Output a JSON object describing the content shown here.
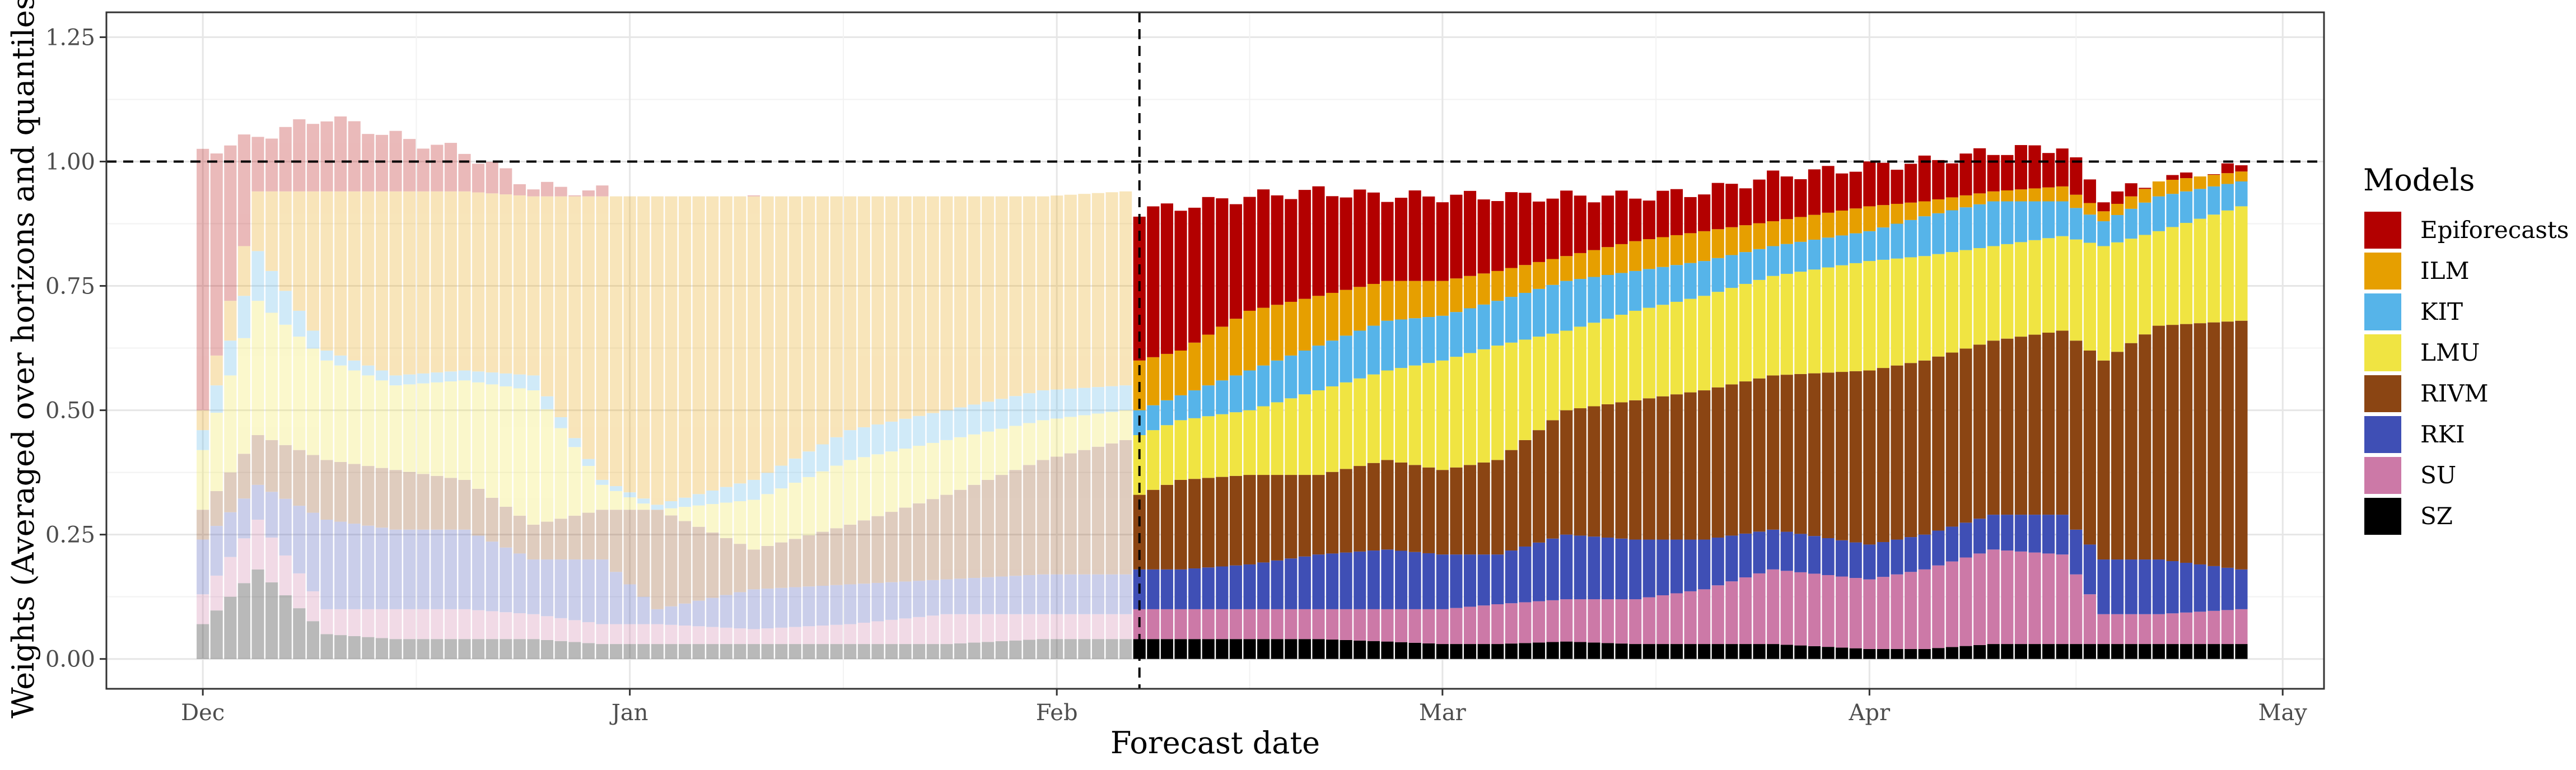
{
  "chart_data": {
    "type": "bar",
    "stacked": true,
    "xlabel": "Forecast date",
    "ylabel": "Weights (Averaged over horizons and quantiles)",
    "ylim": [
      -0.06,
      1.3
    ],
    "y_ticks": [
      "0.00",
      "0.25",
      "0.50",
      "0.75",
      "1.00",
      "1.25"
    ],
    "y_tick_values": [
      0,
      0.25,
      0.5,
      0.75,
      1.0,
      1.25
    ],
    "x_range": [
      "2021-11-24",
      "2022-05-04"
    ],
    "x_ticks": [
      {
        "label": "Dec",
        "date": "2021-12-01"
      },
      {
        "label": "Jan",
        "date": "2022-01-01"
      },
      {
        "label": "Feb",
        "date": "2022-02-01"
      },
      {
        "label": "Mar",
        "date": "2022-03-01"
      },
      {
        "label": "Apr",
        "date": "2022-04-01"
      },
      {
        "label": "May",
        "date": "2022-05-01"
      }
    ],
    "reference_line_y": 1.0,
    "vertical_line_date": "2022-02-07",
    "faded_before_date": "2022-02-07",
    "grid": true,
    "legend_position": "right",
    "legend_title": "Models",
    "series_order_bottom_to_top": [
      "SZ",
      "SU",
      "RKI",
      "RIVM",
      "LMU",
      "KIT",
      "ILM",
      "Epiforecasts"
    ],
    "models": [
      {
        "name": "Epiforecasts",
        "color": "#B30000"
      },
      {
        "name": "ILM",
        "color": "#E69F00"
      },
      {
        "name": "KIT",
        "color": "#56B4E9"
      },
      {
        "name": "LMU",
        "color": "#F0E442"
      },
      {
        "name": "RIVM",
        "color": "#8B4513"
      },
      {
        "name": "RKI",
        "color": "#3F4FB5"
      },
      {
        "name": "SU",
        "color": "#CC79A7"
      },
      {
        "name": "SZ",
        "color": "#000000"
      }
    ],
    "key_dates": [
      "2021-12-01",
      "2021-12-05",
      "2021-12-10",
      "2021-12-15",
      "2021-12-20",
      "2021-12-25",
      "2021-12-30",
      "2022-01-03",
      "2022-01-10",
      "2022-01-17",
      "2022-01-24",
      "2022-01-31",
      "2022-02-06",
      "2022-02-07",
      "2022-02-10",
      "2022-02-15",
      "2022-02-20",
      "2022-02-25",
      "2022-03-01",
      "2022-03-05",
      "2022-03-10",
      "2022-03-15",
      "2022-03-20",
      "2022-03-25",
      "2022-04-01",
      "2022-04-05",
      "2022-04-10",
      "2022-04-15",
      "2022-04-18",
      "2022-04-22",
      "2022-04-28"
    ],
    "key_cumulative": {
      "SZ": [
        0.07,
        0.18,
        0.05,
        0.04,
        0.04,
        0.04,
        0.03,
        0.03,
        0.03,
        0.03,
        0.03,
        0.04,
        0.04,
        0.04,
        0.04,
        0.04,
        0.04,
        0.035,
        0.03,
        0.03,
        0.035,
        0.03,
        0.03,
        0.03,
        0.02,
        0.02,
        0.03,
        0.03,
        0.03,
        0.03,
        0.03
      ],
      "SU": [
        0.13,
        0.28,
        0.1,
        0.1,
        0.1,
        0.09,
        0.07,
        0.07,
        0.06,
        0.07,
        0.09,
        0.09,
        0.09,
        0.1,
        0.1,
        0.1,
        0.1,
        0.1,
        0.1,
        0.11,
        0.12,
        0.12,
        0.14,
        0.18,
        0.16,
        0.18,
        0.22,
        0.21,
        0.09,
        0.09,
        0.1
      ],
      "RKI": [
        0.24,
        0.35,
        0.28,
        0.26,
        0.26,
        0.2,
        0.2,
        0.1,
        0.14,
        0.15,
        0.16,
        0.17,
        0.17,
        0.18,
        0.18,
        0.19,
        0.21,
        0.22,
        0.21,
        0.21,
        0.25,
        0.24,
        0.24,
        0.26,
        0.23,
        0.25,
        0.29,
        0.29,
        0.2,
        0.2,
        0.18
      ],
      "RIVM": [
        0.3,
        0.45,
        0.4,
        0.38,
        0.36,
        0.27,
        0.3,
        0.3,
        0.22,
        0.27,
        0.33,
        0.4,
        0.44,
        0.33,
        0.36,
        0.37,
        0.37,
        0.4,
        0.38,
        0.4,
        0.5,
        0.52,
        0.54,
        0.57,
        0.58,
        0.6,
        0.64,
        0.66,
        0.6,
        0.67,
        0.68
      ],
      "LMU": [
        0.42,
        0.72,
        0.6,
        0.55,
        0.56,
        0.54,
        0.35,
        0.3,
        0.32,
        0.4,
        0.44,
        0.48,
        0.5,
        0.45,
        0.48,
        0.5,
        0.54,
        0.58,
        0.6,
        0.63,
        0.66,
        0.7,
        0.73,
        0.77,
        0.8,
        0.81,
        0.83,
        0.85,
        0.83,
        0.86,
        0.91
      ],
      "KIT": [
        0.46,
        0.82,
        0.62,
        0.57,
        0.58,
        0.57,
        0.36,
        0.31,
        0.36,
        0.46,
        0.5,
        0.54,
        0.55,
        0.5,
        0.53,
        0.58,
        0.63,
        0.68,
        0.69,
        0.72,
        0.76,
        0.78,
        0.8,
        0.83,
        0.86,
        0.89,
        0.92,
        0.92,
        0.88,
        0.93,
        0.96
      ],
      "ILM": [
        0.5,
        0.94,
        0.94,
        0.94,
        0.94,
        0.93,
        0.93,
        0.93,
        0.93,
        0.93,
        0.93,
        0.93,
        0.94,
        0.6,
        0.62,
        0.7,
        0.73,
        0.76,
        0.76,
        0.78,
        0.81,
        0.84,
        0.86,
        0.88,
        0.91,
        0.92,
        0.94,
        0.95,
        0.9,
        0.96,
        0.98
      ],
      "Epiforecasts": [
        1.02,
        1.05,
        1.09,
        1.05,
        1.02,
        0.95,
        0.94,
        0.91,
        0.92,
        0.91,
        0.89,
        0.88,
        0.9,
        0.9,
        0.91,
        0.93,
        0.94,
        0.93,
        0.93,
        0.93,
        0.93,
        0.93,
        0.94,
        0.97,
        0.99,
        1.0,
        1.02,
        1.03,
        0.93,
        0.96,
        0.99
      ]
    }
  }
}
